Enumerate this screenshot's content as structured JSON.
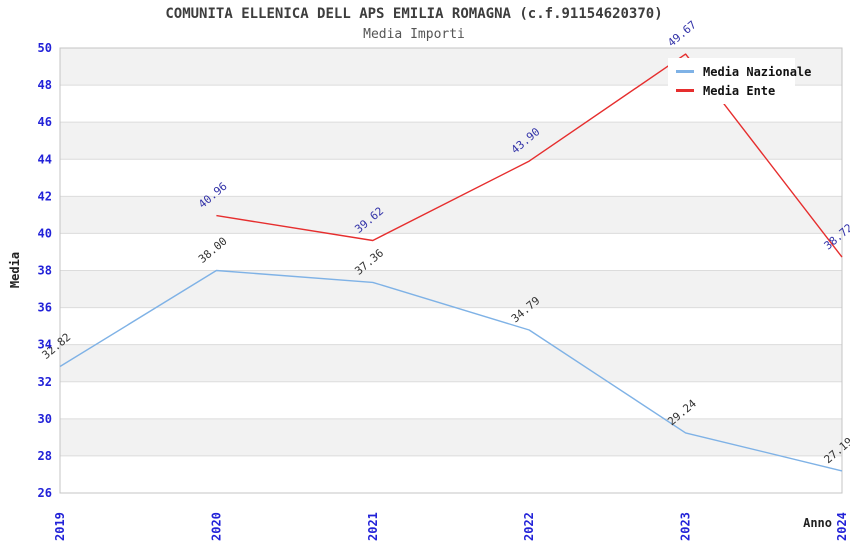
{
  "chart_data": {
    "type": "line",
    "title": "COMUNITA ELLENICA DELL APS EMILIA ROMAGNA (c.f.91154620370)",
    "subtitle": "Media Importi",
    "xlabel": "Anno",
    "ylabel": "Media",
    "x": [
      "2019",
      "2020",
      "2021",
      "2022",
      "2023",
      "2024"
    ],
    "ylim": [
      26,
      50
    ],
    "ytick_step": 2,
    "grid": "horizontal-bands",
    "legend_position": "top-right",
    "colors": {
      "tick_label": "#2222D8",
      "axis_label": "#222222",
      "band": "#F2F2F2",
      "gridline": "#DCDCDC",
      "plot_border": "#C4C4C4"
    },
    "series": [
      {
        "name": "Media Nazionale",
        "color": "#7FB2E6",
        "label_color": "#333333",
        "values": [
          32.82,
          38.0,
          37.36,
          34.79,
          29.24,
          27.19
        ]
      },
      {
        "name": "Media Ente",
        "color": "#E62E2E",
        "label_color": "#3232A8",
        "values": [
          null,
          40.96,
          39.62,
          43.9,
          49.67,
          38.72
        ]
      }
    ]
  }
}
